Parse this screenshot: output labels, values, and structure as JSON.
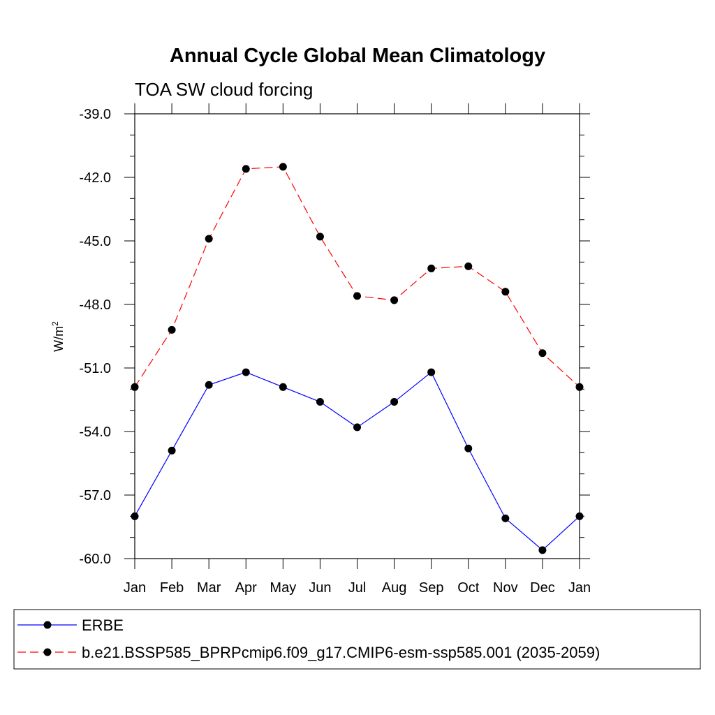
{
  "chart_data": {
    "type": "line",
    "title": "Annual Cycle Global Mean Climatology",
    "subtitle": "TOA SW cloud forcing",
    "ylabel": "W/m",
    "ylabel_superscript": "2",
    "ylim": [
      -60.0,
      -39.0
    ],
    "yticks": [
      "-39.0",
      "-42.0",
      "-45.0",
      "-48.0",
      "-51.0",
      "-54.0",
      "-57.0",
      "-60.0"
    ],
    "ytick_values": [
      -39,
      -42,
      -45,
      -48,
      -51,
      -54,
      -57,
      -60
    ],
    "categories": [
      "Jan",
      "Feb",
      "Mar",
      "Apr",
      "May",
      "Jun",
      "Jul",
      "Aug",
      "Sep",
      "Oct",
      "Nov",
      "Dec",
      "Jan"
    ],
    "grid": false,
    "legend_position": "bottom",
    "series": [
      {
        "name": "ERBE",
        "color": "#0000ff",
        "dash": "solid",
        "values": [
          -58.0,
          -54.9,
          -51.8,
          -51.2,
          -51.9,
          -52.6,
          -53.8,
          -52.6,
          -51.2,
          -54.8,
          -58.1,
          -59.6,
          -58.0
        ]
      },
      {
        "name": "b.e21.BSSP585_BPRPcmip6.f09_g17.CMIP6-esm-ssp585.001 (2035-2059)",
        "color": "#ff0000",
        "dash": "dashed",
        "values": [
          -51.9,
          -49.2,
          -44.9,
          -41.6,
          -41.5,
          -44.8,
          -47.6,
          -47.8,
          -46.3,
          -46.2,
          -47.4,
          -50.3,
          -51.9
        ]
      }
    ]
  }
}
